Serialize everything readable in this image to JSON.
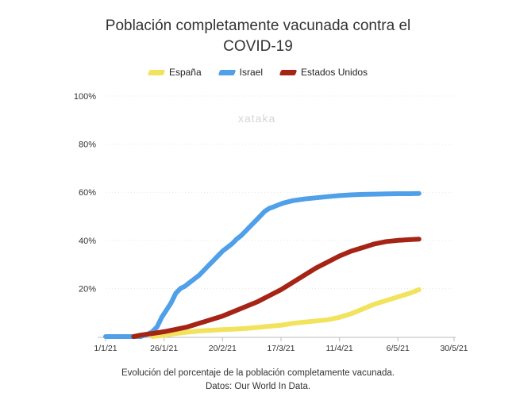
{
  "chart_data": {
    "type": "line",
    "title_lines": [
      "Población completamente vacunada contra el",
      "COVID-19"
    ],
    "y_ticks": [
      "100%",
      "80%",
      "60%",
      "40%",
      "20%"
    ],
    "x_ticks": [
      "1/1/21",
      "26/1/21",
      "20/2/21",
      "17/3/21",
      "11/4/21",
      "6/5/21",
      "30/5/21"
    ],
    "ylim": [
      0,
      100
    ],
    "grid": true,
    "legend_position": "top-center",
    "series": [
      {
        "name": "España",
        "color": "#f2e35e",
        "points": [
          [
            20,
            0
          ],
          [
            25,
            0.5
          ],
          [
            30,
            1.3
          ],
          [
            35,
            1.8
          ],
          [
            40,
            2.3
          ],
          [
            45,
            2.6
          ],
          [
            50,
            2.9
          ],
          [
            55,
            3.1
          ],
          [
            60,
            3.4
          ],
          [
            65,
            3.8
          ],
          [
            70,
            4.3
          ],
          [
            75,
            4.7
          ],
          [
            80,
            5.5
          ],
          [
            85,
            6.0
          ],
          [
            90,
            6.5
          ],
          [
            95,
            7.0
          ],
          [
            100,
            8.0
          ],
          [
            105,
            9.5
          ],
          [
            110,
            11.5
          ],
          [
            115,
            13.5
          ],
          [
            120,
            15.0
          ],
          [
            125,
            16.5
          ],
          [
            130,
            18.0
          ],
          [
            134,
            19.5
          ]
        ]
      },
      {
        "name": "Israel",
        "color": "#4fa0e8",
        "points": [
          [
            0,
            0
          ],
          [
            15,
            0
          ],
          [
            18,
            1
          ],
          [
            20,
            2
          ],
          [
            22,
            4
          ],
          [
            24,
            8
          ],
          [
            26,
            11
          ],
          [
            28,
            14
          ],
          [
            30,
            18
          ],
          [
            32,
            20
          ],
          [
            34,
            21
          ],
          [
            36,
            22.5
          ],
          [
            38,
            24
          ],
          [
            40,
            25.5
          ],
          [
            42,
            27.5
          ],
          [
            44,
            29.5
          ],
          [
            46,
            31.5
          ],
          [
            48,
            33.5
          ],
          [
            50,
            35.5
          ],
          [
            52,
            37
          ],
          [
            54,
            38.5
          ],
          [
            56,
            40.5
          ],
          [
            58,
            42
          ],
          [
            60,
            44
          ],
          [
            62,
            46
          ],
          [
            64,
            48
          ],
          [
            66,
            50
          ],
          [
            68,
            52
          ],
          [
            70,
            53.3
          ],
          [
            72,
            54
          ],
          [
            74,
            54.8
          ],
          [
            76,
            55.5
          ],
          [
            80,
            56.5
          ],
          [
            85,
            57.2
          ],
          [
            90,
            57.7
          ],
          [
            95,
            58.2
          ],
          [
            100,
            58.6
          ],
          [
            105,
            58.9
          ],
          [
            110,
            59.1
          ],
          [
            115,
            59.2
          ],
          [
            120,
            59.3
          ],
          [
            125,
            59.4
          ],
          [
            130,
            59.4
          ],
          [
            134,
            59.5
          ]
        ]
      },
      {
        "name": "Estados Unidos",
        "color": "#a52415",
        "points": [
          [
            12,
            0
          ],
          [
            15,
            0.6
          ],
          [
            20,
            1.3
          ],
          [
            25,
            2.0
          ],
          [
            30,
            3.0
          ],
          [
            35,
            4.0
          ],
          [
            40,
            5.5
          ],
          [
            45,
            7.0
          ],
          [
            50,
            8.5
          ],
          [
            55,
            10.5
          ],
          [
            60,
            12.5
          ],
          [
            65,
            14.5
          ],
          [
            70,
            17.0
          ],
          [
            75,
            19.5
          ],
          [
            80,
            22.5
          ],
          [
            85,
            25.5
          ],
          [
            90,
            28.5
          ],
          [
            95,
            31.0
          ],
          [
            100,
            33.5
          ],
          [
            105,
            35.5
          ],
          [
            110,
            37.0
          ],
          [
            115,
            38.5
          ],
          [
            120,
            39.5
          ],
          [
            125,
            40.0
          ],
          [
            130,
            40.3
          ],
          [
            134,
            40.5
          ]
        ]
      }
    ]
  },
  "watermark": "xataka",
  "caption_lines": [
    "Evolución del porcentaje de la población completamente vacunada.",
    "Datos: Our World In Data."
  ]
}
